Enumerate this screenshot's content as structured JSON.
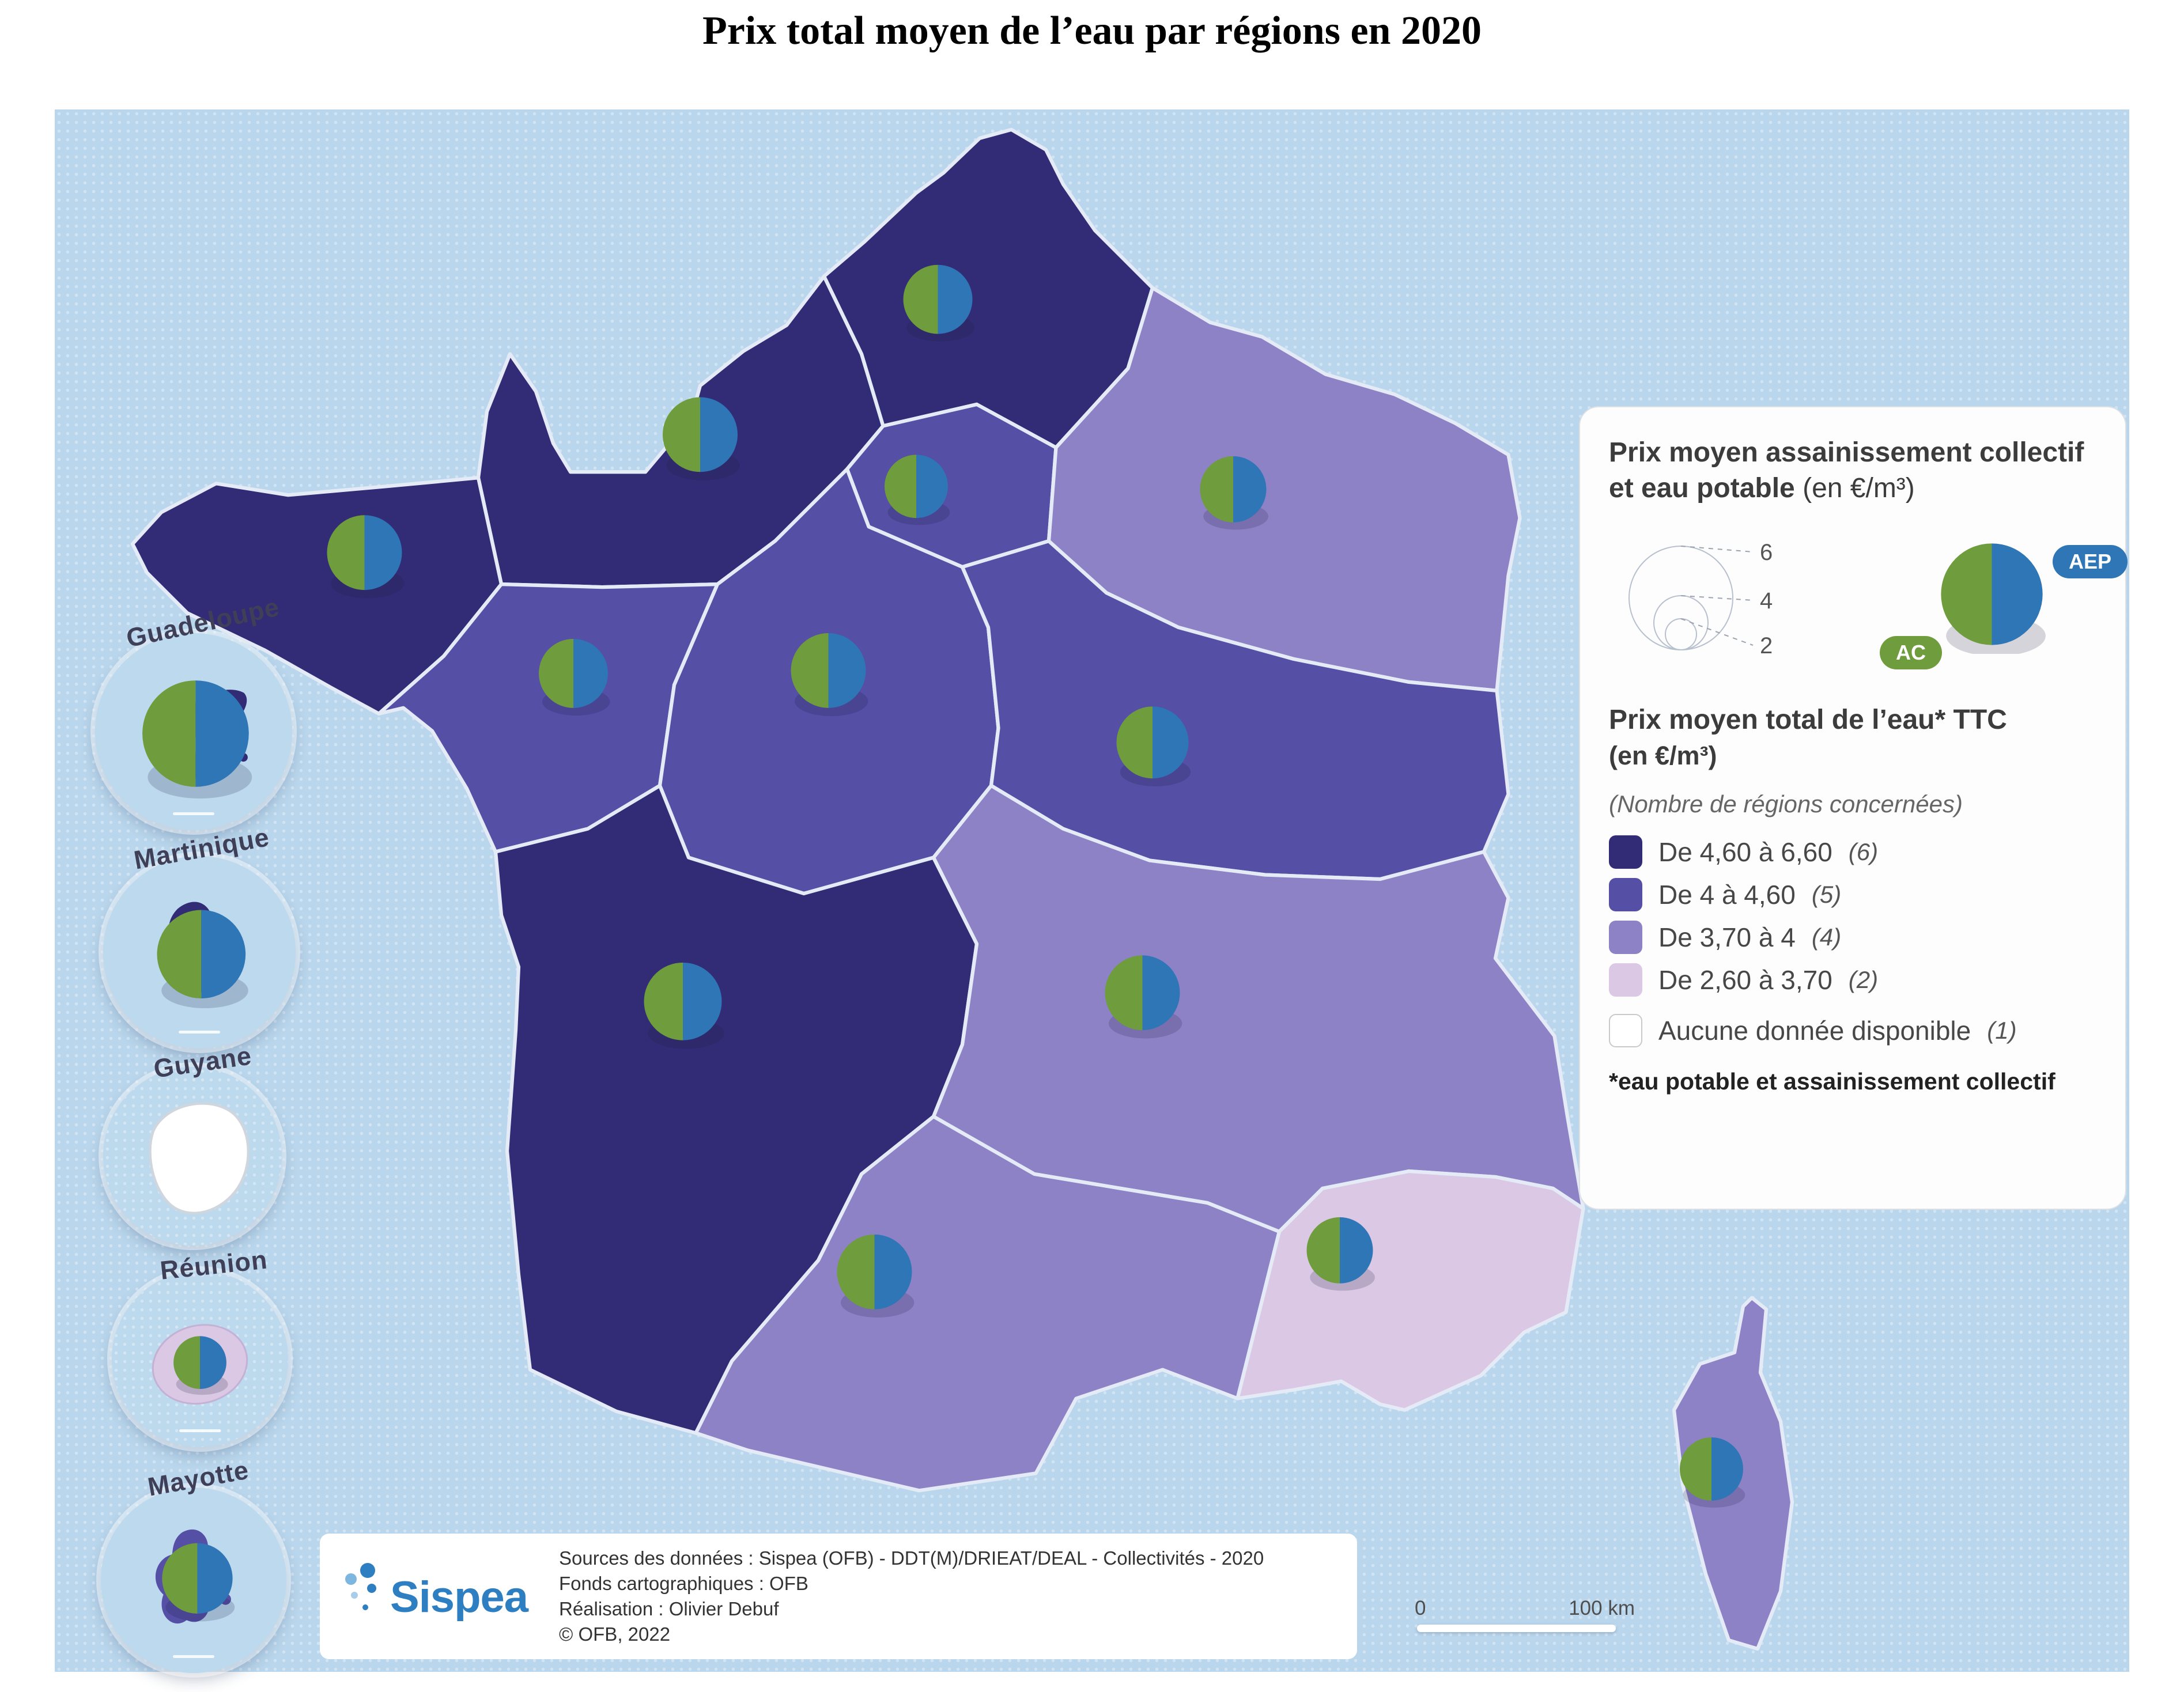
{
  "page": {
    "title": "Prix total moyen de l’eau par régions en 2020"
  },
  "colors": {
    "sea": "#b9d6ec",
    "class1": "#322c76",
    "class2": "#554fa6",
    "class3": "#8e82c7",
    "class4": "#dac8e4",
    "nodata": "#ffffff",
    "pieGreen": "#6f9c3c",
    "pieBlue": "#2e76b6"
  },
  "map": {
    "regions": {
      "hauts-de-france": "class1",
      "normandie": "class1",
      "bretagne": "class1",
      "ile-de-france": "class2",
      "grand-est": "class3",
      "pays-de-la-loire": "class2",
      "centre-val-de-loire": "class2",
      "bourgogne-franche-comte": "class2",
      "nouvelle-aquitaine": "class1",
      "auvergne-rhone-alpes": "class3",
      "occitanie": "class3",
      "provence-alpes-cote-d-azur": "class4",
      "corse": "class3",
      "guadeloupe-island": "class1",
      "martinique-island": "class1",
      "guyane-island": "nodata",
      "reunion-island": "class4",
      "mayotte-island": "class2"
    }
  },
  "territories": [
    {
      "name": "Guadeloupe"
    },
    {
      "name": "Martinique"
    },
    {
      "name": "Guyane"
    },
    {
      "name": "Réunion"
    },
    {
      "name": "Mayotte"
    }
  ],
  "legend": {
    "pie_title": "Prix moyen assainissement collectif et eau potable",
    "pie_unit": "(en €/m³)",
    "size_values": [
      "6",
      "4",
      "2"
    ],
    "ac_label": "AC",
    "aep_label": "AEP",
    "total_title": "Prix moyen total de l’eau* TTC",
    "total_unit": "(en €/m³)",
    "note": "(Nombre de régions concernées)",
    "classes": [
      {
        "label": "De 4,60 à 6,60",
        "count": "(6)",
        "color": "class1"
      },
      {
        "label": "De 4 à 4,60",
        "count": "(5)",
        "color": "class2"
      },
      {
        "label": "De 3,70 à 4",
        "count": "(4)",
        "color": "class3"
      },
      {
        "label": "De 2,60 à 3,70",
        "count": "(2)",
        "color": "class4"
      },
      {
        "label": "Aucune donnée disponible",
        "count": "(1)",
        "color": "nodata"
      }
    ],
    "footnote": "*eau potable et assainissement collectif"
  },
  "attribution": {
    "logo": "Sispea",
    "lines": [
      "Sources des données : Sispea (OFB) - DDT(M)/DRIEAT/DEAL - Collectivités - 2020",
      "Fonds cartographiques : OFB",
      "Réalisation : Olivier Debuf",
      "© OFB, 2022"
    ]
  },
  "scalebar": {
    "zero": "0",
    "max": "100 km"
  }
}
